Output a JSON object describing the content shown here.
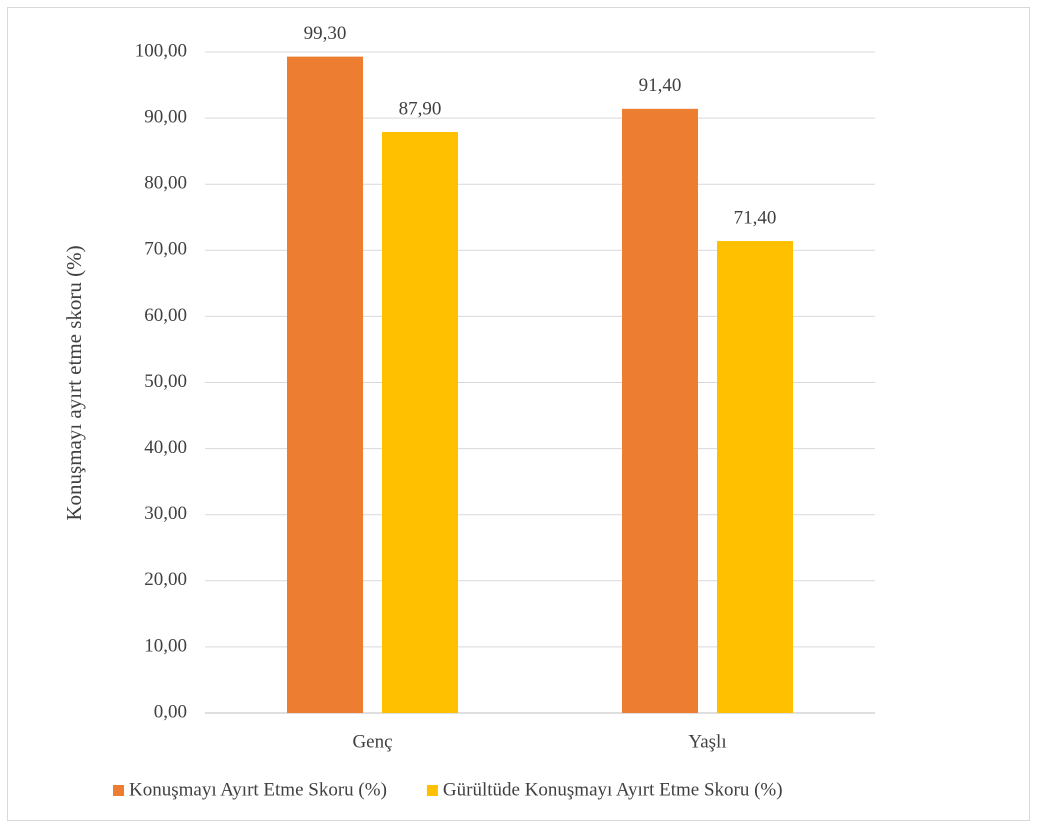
{
  "chart_data": {
    "type": "bar",
    "y_label": "Konuşmayı ayırt etme skoru (%)",
    "categories": [
      "Genç",
      "Yaşlı"
    ],
    "series": [
      {
        "name": "Konuşmayı Ayırt Etme Skoru (%)",
        "color": "#ed7d31",
        "values": [
          99.3,
          91.4
        ],
        "value_labels": [
          "99,30",
          "91,40"
        ]
      },
      {
        "name": "Gürültüde Konuşmayı Ayırt Etme Skoru (%)",
        "color": "#ffc000",
        "values": [
          87.9,
          71.4
        ],
        "value_labels": [
          "87,90",
          "71,40"
        ]
      }
    ],
    "ylim": [
      0,
      100
    ],
    "yticks": [
      {
        "value": 0,
        "label": "0,00"
      },
      {
        "value": 10,
        "label": "10,00"
      },
      {
        "value": 20,
        "label": "20,00"
      },
      {
        "value": 30,
        "label": "30,00"
      },
      {
        "value": 40,
        "label": "40,00"
      },
      {
        "value": 50,
        "label": "50,00"
      },
      {
        "value": 60,
        "label": "60,00"
      },
      {
        "value": 70,
        "label": "70,00"
      },
      {
        "value": 80,
        "label": "80,00"
      },
      {
        "value": 90,
        "label": "90,00"
      },
      {
        "value": 100,
        "label": "100,00"
      }
    ],
    "grid": true,
    "legend": "bottom"
  }
}
